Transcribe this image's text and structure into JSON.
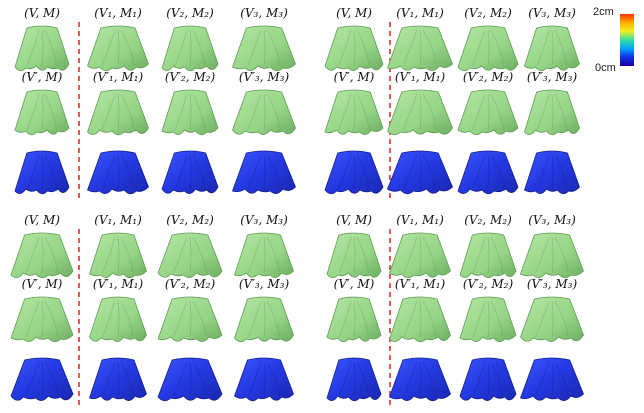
{
  "figure": {
    "colorbar": {
      "max_label": "2cm",
      "min_label": "0cm",
      "colors": [
        "#ff3000",
        "#ffb000",
        "#f0f020",
        "#30e0a0",
        "#00a0ff",
        "#1030e0",
        "#2000a0"
      ]
    },
    "garment_color": "#9ad88a",
    "garment_edge": "#5e9e55",
    "error_color": "#2a3ff0",
    "divider_color": "#e03030",
    "panels": [
      {
        "row1": [
          "(V, M)",
          "(V₁, M₁)",
          "(V₂, M₂)",
          "(V₃, M₃)"
        ],
        "row2": [
          "(V′, M)",
          "(V′₁, M₁)",
          "(V′₂, M₂)",
          "(V′₃, M₃)"
        ]
      },
      {
        "row1": [
          "(V, M)",
          "(V₁, M₁)",
          "(V₂, M₂)",
          "(V₃, M₃)"
        ],
        "row2": [
          "(V′, M)",
          "(V′₁, M₁)",
          "(V′₂, M₂)",
          "(V′₃, M₃)"
        ]
      },
      {
        "row1": [
          "(V, M)",
          "(V₁, M₁)",
          "(V₂, M₂)",
          "(V₃, M₃)"
        ],
        "row2": [
          "(V′, M)",
          "(V′₁, M₁)",
          "(V′₂, M₂)",
          "(V′₃, M₃)"
        ]
      },
      {
        "row1": [
          "(V, M)",
          "(V₁, M₁)",
          "(V₂, M₂)",
          "(V₃, M₃)"
        ],
        "row2": [
          "(V′, M)",
          "(V′₁, M₁)",
          "(V′₂, M₂)",
          "(V′₃, M₃)"
        ]
      }
    ]
  }
}
